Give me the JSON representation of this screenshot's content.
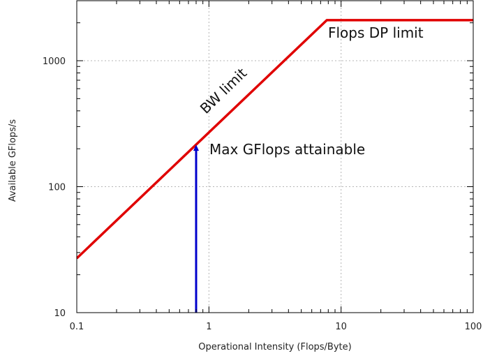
{
  "chart_data": {
    "type": "line",
    "title": "",
    "xlabel": "Operational Intensity (Flops/Byte)",
    "ylabel": "Available GFlops/s",
    "xscale": "log",
    "yscale": "log",
    "xlim": [
      0.1,
      100
    ],
    "ylim": [
      10,
      2500
    ],
    "grid": true,
    "x_ticks": [
      0.1,
      1,
      10,
      100
    ],
    "x_tick_labels": [
      "0.1",
      "1",
      "10",
      "100"
    ],
    "y_ticks": [
      10,
      100,
      1000
    ],
    "y_tick_labels": [
      "10",
      "100",
      "1000"
    ],
    "series": [
      {
        "color": "#e00000",
        "points": [
          [
            0.1,
            27
          ],
          [
            7.8,
            2100
          ],
          [
            100,
            2100
          ]
        ]
      },
      {
        "color": "#0000cc",
        "style": "arrow",
        "points": [
          [
            0.8,
            10
          ],
          [
            0.8,
            216
          ]
        ]
      }
    ],
    "annotations": {
      "bw_limit": "BW limit",
      "flops_limit": "Flops DP limit",
      "max_attainable": "Max GFlops attainable"
    }
  }
}
